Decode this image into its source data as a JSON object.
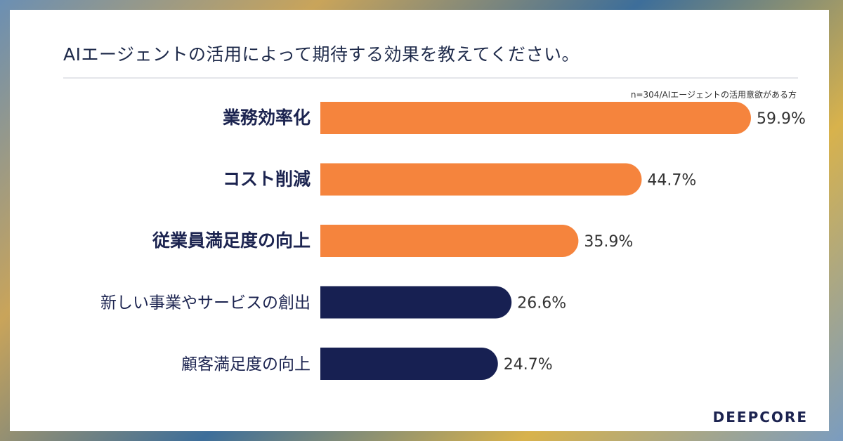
{
  "colors": {
    "highlight": "#f5843d",
    "base": "#172052",
    "category_text": "#1c2450",
    "value_text": "#333333"
  },
  "chart_data": {
    "type": "bar",
    "orientation": "horizontal",
    "title": "AIエージェントの活用によって期待する効果を教えてください。",
    "note": "n=304/AIエージェントの活用意欲がある方",
    "categories": [
      "業務効率化",
      "コスト削減",
      "従業員満足度の向上",
      "新しい事業やサービスの創出",
      "顧客満足度の向上"
    ],
    "values": [
      59.9,
      44.7,
      35.9,
      26.6,
      24.7
    ],
    "value_labels": [
      "59.9%",
      "44.7%",
      "35.9%",
      "26.6%",
      "24.7%"
    ],
    "highlighted": [
      true,
      true,
      true,
      false,
      false
    ],
    "xlim": [
      0,
      60
    ],
    "grid": false,
    "legend": "none"
  },
  "brand": "DEEPCORE"
}
